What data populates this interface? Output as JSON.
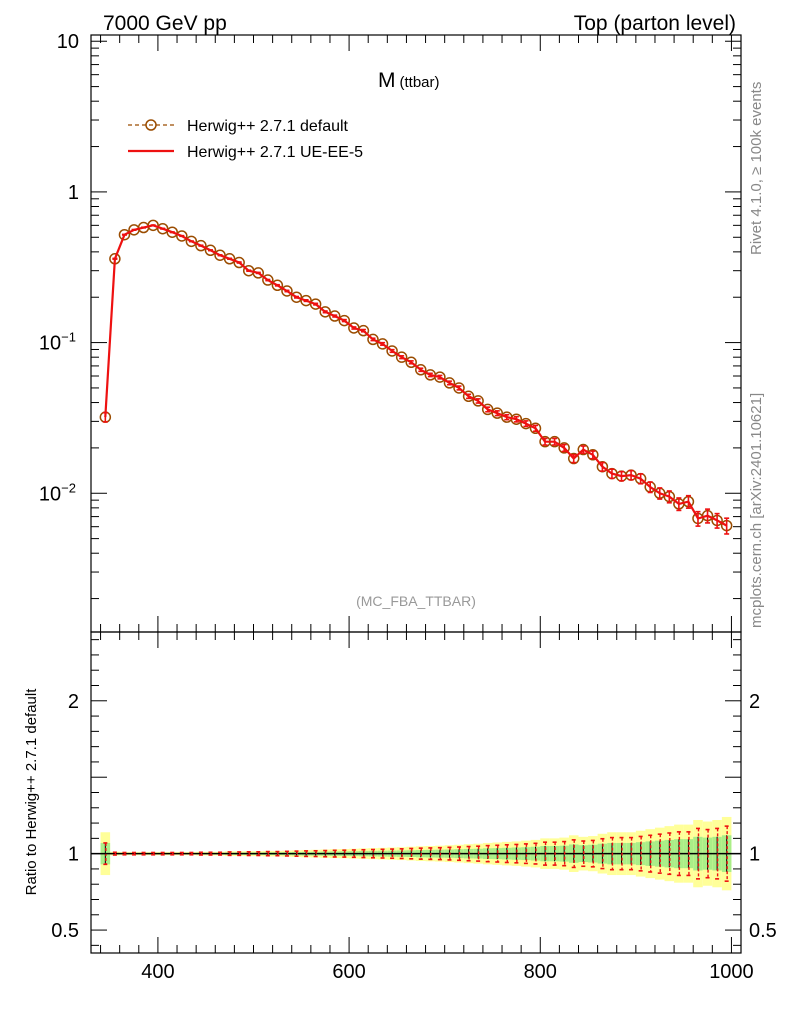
{
  "header": {
    "left": "7000 GeV pp",
    "right": "Top (parton level)"
  },
  "side": {
    "rivet_a": "Rivet 4.1.0, ",
    "rivet_ge": "≥",
    "rivet_b": " 100k events",
    "mcplots": "mcplots.cern.ch [arXiv:2401.10621]"
  },
  "labels": {
    "observable_main": "M",
    "observable_sub": "(ttbar)",
    "analysis": "(MC_FBA_TTBAR)",
    "ratio_ylabel": "Ratio to Herwig++ 2.7.1 default"
  },
  "colors": {
    "reference": "#9a4c00",
    "ue_ee5": "#ee1111",
    "band_outer": "#ffff99",
    "band_inner": "#aaee88"
  },
  "chart_data": [
    {
      "type": "line",
      "panel": "main",
      "yscale": "log",
      "xlim": [
        330,
        1010
      ],
      "ylim": [
        0.0012,
        11
      ],
      "y_ticks": [
        {
          "value": 10,
          "label": "10"
        },
        {
          "value": 1,
          "label": "1"
        },
        {
          "value": 0.1,
          "label": "10",
          "exp": "−1"
        },
        {
          "value": 0.01,
          "label": "10",
          "exp": "−2"
        }
      ],
      "legend": [
        "Herwig++ 2.7.1 default",
        "Herwig++ 2.7.1 UE-EE-5"
      ],
      "legend_position": "top-left",
      "x": [
        345,
        355,
        365,
        375,
        385,
        395,
        405,
        415,
        425,
        435,
        445,
        455,
        465,
        475,
        485,
        495,
        505,
        515,
        525,
        535,
        545,
        555,
        565,
        575,
        585,
        595,
        605,
        615,
        625,
        635,
        645,
        655,
        665,
        675,
        685,
        695,
        705,
        715,
        725,
        735,
        745,
        755,
        765,
        775,
        785,
        795,
        805,
        815,
        825,
        835,
        845,
        855,
        865,
        875,
        885,
        895,
        905,
        915,
        925,
        935,
        945,
        955,
        965,
        975,
        985,
        995
      ],
      "series": [
        {
          "name": "Herwig++ 2.7.1 default",
          "style": "dashed-open-circles",
          "values": [
            0.032,
            0.36,
            0.52,
            0.56,
            0.58,
            0.6,
            0.57,
            0.54,
            0.51,
            0.47,
            0.44,
            0.41,
            0.38,
            0.36,
            0.34,
            0.3,
            0.29,
            0.26,
            0.24,
            0.22,
            0.2,
            0.19,
            0.18,
            0.16,
            0.15,
            0.14,
            0.125,
            0.12,
            0.105,
            0.098,
            0.088,
            0.08,
            0.074,
            0.066,
            0.061,
            0.059,
            0.054,
            0.05,
            0.044,
            0.041,
            0.036,
            0.034,
            0.032,
            0.031,
            0.029,
            0.027,
            0.022,
            0.022,
            0.02,
            0.017,
            0.0195,
            0.018,
            0.015,
            0.0135,
            0.013,
            0.0132,
            0.0125,
            0.011,
            0.01,
            0.0095,
            0.0085,
            0.0088,
            0.0068,
            0.0071,
            0.0066,
            0.0061
          ]
        },
        {
          "name": "Herwig++ 2.7.1 UE-EE-5",
          "style": "solid",
          "values": [
            0.032,
            0.36,
            0.52,
            0.56,
            0.58,
            0.6,
            0.57,
            0.54,
            0.51,
            0.47,
            0.44,
            0.41,
            0.38,
            0.36,
            0.34,
            0.3,
            0.29,
            0.26,
            0.24,
            0.22,
            0.2,
            0.19,
            0.18,
            0.16,
            0.15,
            0.14,
            0.125,
            0.12,
            0.105,
            0.098,
            0.088,
            0.08,
            0.074,
            0.066,
            0.061,
            0.059,
            0.054,
            0.05,
            0.044,
            0.041,
            0.036,
            0.034,
            0.032,
            0.031,
            0.029,
            0.027,
            0.022,
            0.022,
            0.02,
            0.017,
            0.0195,
            0.018,
            0.015,
            0.0135,
            0.013,
            0.0132,
            0.0125,
            0.011,
            0.01,
            0.0095,
            0.0085,
            0.0088,
            0.0068,
            0.0071,
            0.0066,
            0.0061
          ]
        }
      ]
    },
    {
      "type": "line",
      "panel": "ratio",
      "xlim": [
        330,
        1010
      ],
      "ylim": [
        0.35,
        2.45
      ],
      "ylabel": "Ratio to Herwig++ 2.7.1 default",
      "x_ticks": [
        400,
        600,
        800,
        1000
      ],
      "y_ticks": [
        {
          "value": 2,
          "label": "2"
        },
        {
          "value": 1,
          "label": "1"
        },
        {
          "value": 0.5,
          "label": "0.5"
        }
      ],
      "x": [
        345,
        355,
        365,
        375,
        385,
        395,
        405,
        415,
        425,
        435,
        445,
        455,
        465,
        475,
        485,
        495,
        505,
        515,
        525,
        535,
        545,
        555,
        565,
        575,
        585,
        595,
        605,
        615,
        625,
        635,
        645,
        655,
        665,
        675,
        685,
        695,
        705,
        715,
        725,
        735,
        745,
        755,
        765,
        775,
        785,
        795,
        805,
        815,
        825,
        835,
        845,
        855,
        865,
        875,
        885,
        895,
        905,
        915,
        925,
        935,
        945,
        955,
        965,
        975,
        985,
        995
      ],
      "ratio": 1.0,
      "bin_width": 10,
      "band_yellow_halfwidth": [
        0.14,
        0.012,
        0.01,
        0.01,
        0.01,
        0.01,
        0.01,
        0.01,
        0.01,
        0.01,
        0.012,
        0.012,
        0.012,
        0.015,
        0.015,
        0.016,
        0.016,
        0.018,
        0.018,
        0.02,
        0.022,
        0.024,
        0.025,
        0.027,
        0.029,
        0.03,
        0.032,
        0.034,
        0.036,
        0.038,
        0.04,
        0.042,
        0.045,
        0.048,
        0.05,
        0.052,
        0.055,
        0.058,
        0.062,
        0.065,
        0.07,
        0.073,
        0.077,
        0.08,
        0.085,
        0.09,
        0.1,
        0.1,
        0.105,
        0.12,
        0.11,
        0.115,
        0.13,
        0.14,
        0.14,
        0.14,
        0.15,
        0.16,
        0.17,
        0.18,
        0.19,
        0.19,
        0.22,
        0.21,
        0.22,
        0.24
      ],
      "band_green_halfwidth": [
        0.07,
        0.006,
        0.005,
        0.005,
        0.005,
        0.005,
        0.005,
        0.005,
        0.005,
        0.005,
        0.006,
        0.006,
        0.006,
        0.007,
        0.008,
        0.008,
        0.008,
        0.009,
        0.009,
        0.01,
        0.011,
        0.012,
        0.012,
        0.013,
        0.014,
        0.015,
        0.016,
        0.017,
        0.018,
        0.019,
        0.02,
        0.021,
        0.022,
        0.024,
        0.025,
        0.026,
        0.027,
        0.029,
        0.031,
        0.032,
        0.035,
        0.036,
        0.038,
        0.04,
        0.042,
        0.045,
        0.05,
        0.05,
        0.052,
        0.06,
        0.055,
        0.058,
        0.065,
        0.07,
        0.07,
        0.07,
        0.075,
        0.08,
        0.085,
        0.09,
        0.095,
        0.095,
        0.11,
        0.105,
        0.11,
        0.12
      ]
    }
  ]
}
